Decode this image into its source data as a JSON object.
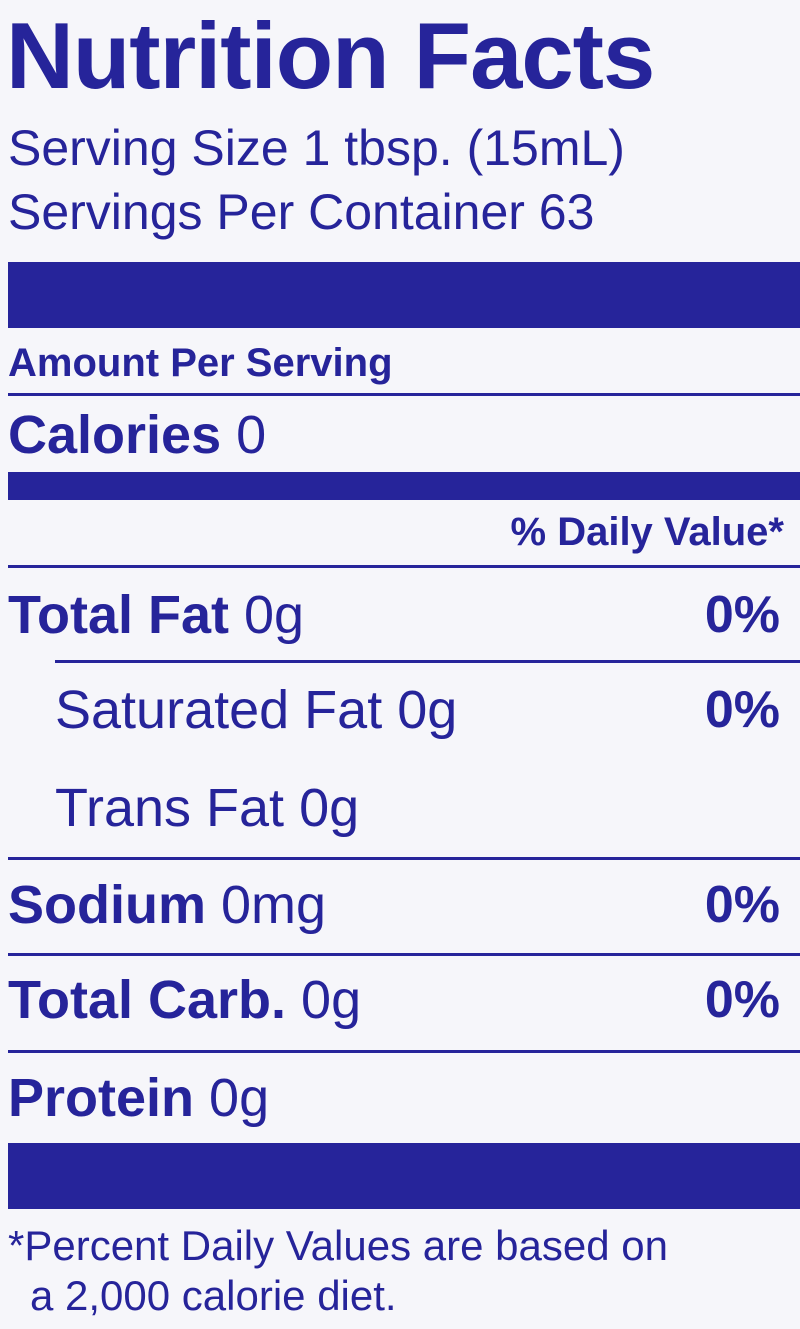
{
  "title": "Nutrition Facts",
  "serving_size": "Serving Size 1 tbsp. (15mL)",
  "servings_per_container": "Servings Per Container 63",
  "amount_per_serving": "Amount Per Serving",
  "calories": {
    "label": "Calories",
    "value": "0"
  },
  "daily_value_header": "% Daily Value*",
  "rows": [
    {
      "label": "Total Fat",
      "amount": "0g",
      "dv": "0%"
    },
    {
      "label": "Saturated Fat",
      "amount": "0g",
      "dv": "0%"
    },
    {
      "label": "Trans Fat",
      "amount": "0g"
    },
    {
      "label": "Sodium",
      "amount": "0mg",
      "dv": "0%"
    },
    {
      "label": "Total Carb.",
      "amount": "0g",
      "dv": "0%"
    },
    {
      "label": "Protein",
      "amount": "0g"
    }
  ],
  "footnote": [
    "*Percent Daily Values are based on",
    "a 2,000 calorie diet."
  ]
}
